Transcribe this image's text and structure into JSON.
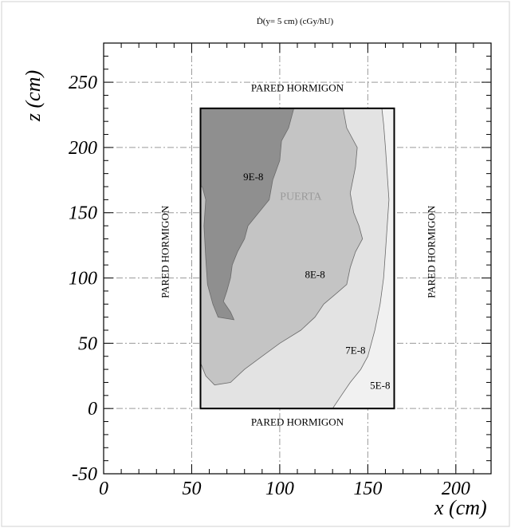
{
  "chart_data": {
    "type": "contour",
    "title": "Ḋ(y= 5 cm) (cGy/hU)",
    "xlabel": "x (cm)",
    "ylabel": "z (cm)",
    "xlim": [
      0,
      220
    ],
    "ylim": [
      -50,
      280
    ],
    "x_ticks": [
      0,
      50,
      100,
      150,
      200
    ],
    "y_ticks": [
      -50,
      0,
      50,
      100,
      150,
      200,
      250
    ],
    "x_tick_labels": [
      "0",
      "50",
      "100",
      "150",
      "200"
    ],
    "y_tick_labels": [
      "-50",
      "0",
      "50",
      "100",
      "150",
      "200",
      "250"
    ],
    "grid": true,
    "region": {
      "x": [
        55,
        165
      ],
      "z": [
        0,
        230
      ]
    },
    "contours": [
      {
        "label": "5E-8",
        "fill": "#f1f1f1",
        "points": [
          [
            55,
            0
          ],
          [
            165,
            0
          ],
          [
            165,
            230
          ],
          [
            55,
            230
          ]
        ]
      },
      {
        "label": "7E-8",
        "fill": "#e3e3e3",
        "points": [
          [
            55,
            230
          ],
          [
            158,
            230
          ],
          [
            159,
            218
          ],
          [
            160,
            200
          ],
          [
            161,
            180
          ],
          [
            162,
            160
          ],
          [
            161,
            140
          ],
          [
            160,
            120
          ],
          [
            159,
            100
          ],
          [
            157,
            80
          ],
          [
            154,
            60
          ],
          [
            150,
            40
          ],
          [
            146,
            30
          ],
          [
            140,
            20
          ],
          [
            135,
            10
          ],
          [
            130,
            0
          ],
          [
            55,
            0
          ]
        ]
      },
      {
        "label": "8E-8",
        "fill": "#c4c4c4",
        "points": [
          [
            55,
            230
          ],
          [
            136,
            230
          ],
          [
            138,
            215
          ],
          [
            144,
            200
          ],
          [
            143,
            185
          ],
          [
            140,
            165
          ],
          [
            142,
            150
          ],
          [
            145,
            140
          ],
          [
            147,
            130
          ],
          [
            143,
            120
          ],
          [
            140,
            108
          ],
          [
            138,
            95
          ],
          [
            132,
            88
          ],
          [
            125,
            80
          ],
          [
            120,
            70
          ],
          [
            112,
            60
          ],
          [
            100,
            50
          ],
          [
            90,
            40
          ],
          [
            80,
            30
          ],
          [
            72,
            20
          ],
          [
            63,
            18
          ],
          [
            58,
            25
          ],
          [
            55,
            35
          ]
        ]
      },
      {
        "label": "9E-8",
        "fill": "#8f8f8f",
        "points": [
          [
            55,
            230
          ],
          [
            108,
            230
          ],
          [
            105,
            215
          ],
          [
            101,
            205
          ],
          [
            100,
            190
          ],
          [
            96,
            175
          ],
          [
            94,
            160
          ],
          [
            88,
            150
          ],
          [
            82,
            140
          ],
          [
            80,
            130
          ],
          [
            76,
            120
          ],
          [
            73,
            110
          ],
          [
            72,
            100
          ],
          [
            70,
            90
          ],
          [
            68,
            82
          ],
          [
            72,
            74
          ],
          [
            74,
            68
          ],
          [
            65,
            70
          ],
          [
            62,
            80
          ],
          [
            59,
            95
          ],
          [
            58,
            115
          ],
          [
            57,
            140
          ],
          [
            58,
            160
          ],
          [
            56,
            170
          ],
          [
            55,
            170
          ]
        ]
      }
    ],
    "contour_labels": [
      {
        "text": "9E-8",
        "x": 85,
        "z": 175
      },
      {
        "text": "8E-8",
        "x": 120,
        "z": 100
      },
      {
        "text": "7E-8",
        "x": 143,
        "z": 42
      },
      {
        "text": "5E-8",
        "x": 157,
        "z": 15
      }
    ],
    "annotations": [
      {
        "text": "PARED HORMIGON",
        "x": 110,
        "z": 243,
        "orient": "horizontal"
      },
      {
        "text": "PARED HORMIGON",
        "x": 110,
        "z": -13,
        "orient": "horizontal"
      },
      {
        "text": "PARED HORMIGON",
        "x": 37,
        "z": 120,
        "orient": "vertical"
      },
      {
        "text": "PARED HORMIGON",
        "x": 188,
        "z": 120,
        "orient": "vertical"
      },
      {
        "text": "PUERTA",
        "x": 112,
        "z": 160,
        "orient": "horizontal",
        "color": "#9a9a9a"
      }
    ]
  }
}
